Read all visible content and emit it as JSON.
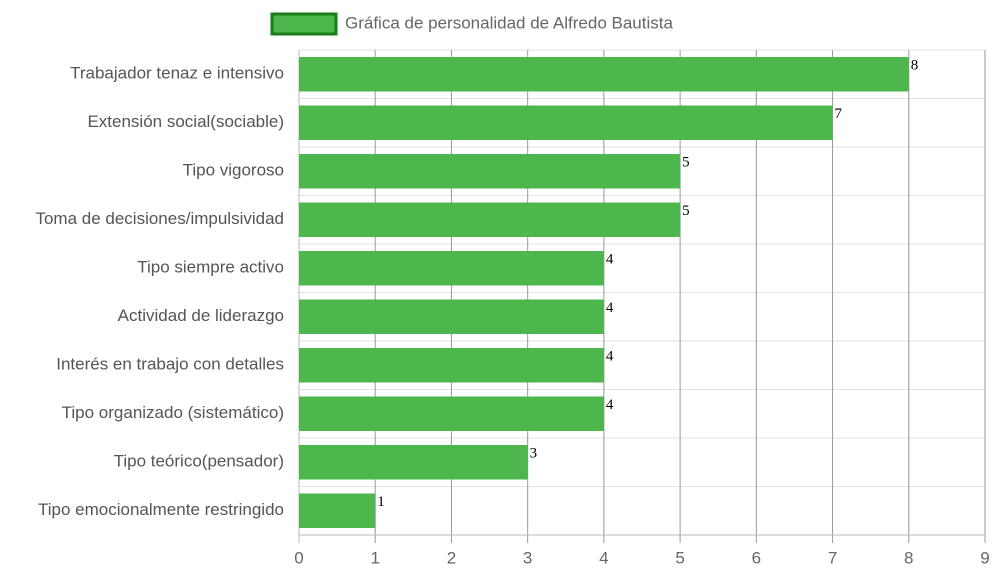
{
  "chart_data": {
    "type": "bar",
    "orientation": "horizontal",
    "categories": [
      "Trabajador tenaz e intensivo",
      "Extensión social(sociable)",
      "Tipo vigoroso",
      "Toma de decisiones/impulsividad",
      "Tipo siempre activo",
      "Actividad de liderazgo",
      "Interés en trabajo con detalles",
      "Tipo organizado (sistemático)",
      "Tipo teórico(pensador)",
      "Tipo emocionalmente restringido"
    ],
    "series": [
      {
        "name": "Gráfica de personalidad de Alfredo Bautista",
        "color": "#4db64d",
        "values": [
          8,
          7,
          5,
          5,
          4,
          4,
          4,
          4,
          3,
          1
        ]
      }
    ],
    "xlim": [
      0,
      9
    ],
    "xticks": [
      0,
      1,
      2,
      3,
      4,
      5,
      6,
      7,
      8,
      9
    ],
    "grid": true,
    "legend": "top"
  }
}
